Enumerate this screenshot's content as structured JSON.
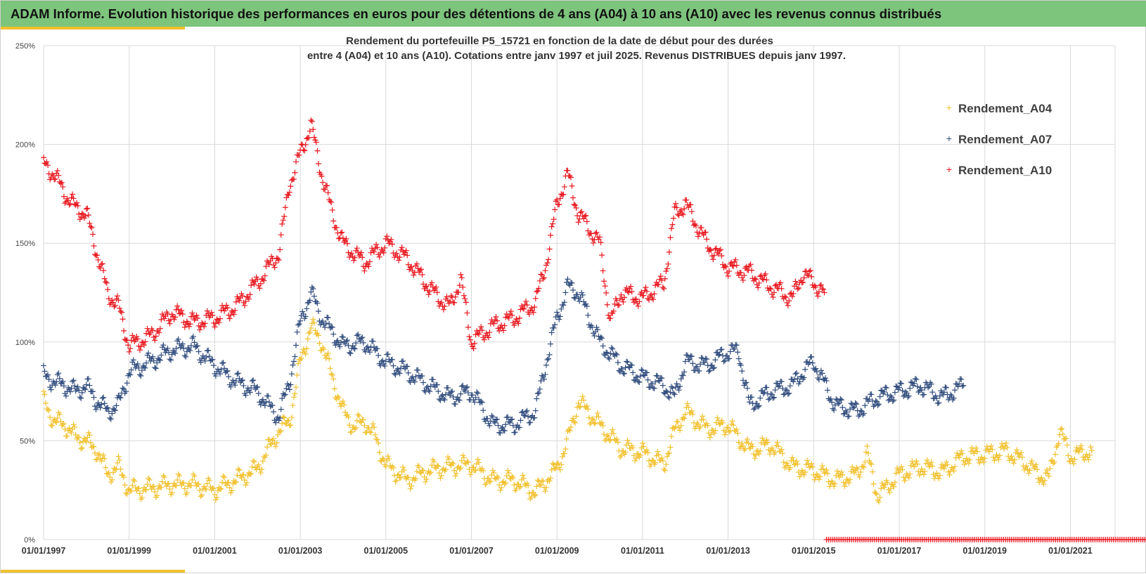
{
  "header": {
    "banner_title": "ADAM Informe. Evolution historique des performances en euros pour des détentions de 4 ans (A04) à 10 ans (A10) avec les revenus connus distribués"
  },
  "colors": {
    "banner": "#7dc47d",
    "accent_bar": "#f2c12e",
    "grid": "#d9d9d9",
    "A04": "#f2c12e",
    "A07": "#2f4b7c",
    "A10": "#e8171f"
  },
  "chart_data": {
    "type": "scatter",
    "title_line1": "Rendement du portefeuille P5_15721 en fonction de la date de début pour des durées",
    "title_line2": "entre 4 (A04) et 10 ans (A10). Cotations  entre janv 1997 et juil 2025. Revenus DISTRIBUES depuis janv 1997.",
    "x_ticks": [
      "01/01/1997",
      "01/01/1999",
      "01/01/2001",
      "01/01/2003",
      "01/01/2005",
      "01/01/2007",
      "01/01/2009",
      "01/01/2011",
      "01/01/2013",
      "01/01/2015",
      "01/01/2017",
      "01/01/2019",
      "01/01/2021"
    ],
    "x_range": [
      1997.0,
      2022.0
    ],
    "y_ticks": [
      "0%",
      "50%",
      "100%",
      "150%",
      "200%",
      "250%"
    ],
    "y_range": [
      0,
      250
    ],
    "grid": true,
    "marker": "+",
    "legend_position": "top-right",
    "series": [
      {
        "name": "Rendement_A04",
        "color": "#f2c12e",
        "x": [
          1997.0,
          1997.25,
          1997.5,
          1997.75,
          1998.0,
          1998.25,
          1998.5,
          1998.75,
          1999.0,
          1999.5,
          2000.0,
          2000.5,
          2001.0,
          2001.5,
          2002.0,
          2002.5,
          2002.75,
          2003.0,
          2003.25,
          2003.5,
          2003.75,
          2004.0,
          2004.25,
          2004.5,
          2004.75,
          2005.0,
          2005.5,
          2006.0,
          2006.5,
          2007.0,
          2007.5,
          2008.0,
          2008.5,
          2009.0,
          2009.25,
          2009.5,
          2010.0,
          2010.5,
          2011.0,
          2011.5,
          2011.75,
          2012.0,
          2012.5,
          2013.0,
          2013.5,
          2014.0,
          2014.5,
          2015.0,
          2015.5,
          2016.0,
          2016.25,
          2016.5,
          2017.0,
          2017.5,
          2018.0,
          2018.5,
          2019.0,
          2019.5,
          2020.0,
          2020.25,
          2020.5,
          2020.75,
          2021.0,
          2021.5
        ],
        "y": [
          70,
          60,
          58,
          52,
          50,
          45,
          33,
          37,
          25,
          26,
          28,
          28,
          25,
          30,
          36,
          55,
          60,
          90,
          108,
          100,
          82,
          65,
          57,
          60,
          52,
          38,
          30,
          35,
          37,
          38,
          30,
          30,
          24,
          36,
          50,
          70,
          58,
          46,
          44,
          38,
          55,
          65,
          56,
          58,
          45,
          48,
          37,
          35,
          30,
          33,
          43,
          22,
          33,
          37,
          34,
          42,
          43,
          45,
          38,
          33,
          31,
          55,
          42,
          45
        ]
      },
      {
        "name": "Rendement_A07",
        "color": "#2f4b7c",
        "x": [
          1997.0,
          1997.25,
          1997.5,
          1997.75,
          1998.0,
          1998.25,
          1998.5,
          1998.75,
          1999.0,
          1999.5,
          2000.0,
          2000.5,
          2001.0,
          2001.5,
          2002.0,
          2002.25,
          2002.5,
          2002.75,
          2003.0,
          2003.25,
          2003.5,
          2003.75,
          2004.0,
          2004.5,
          2005.0,
          2005.5,
          2006.0,
          2006.5,
          2007.0,
          2007.5,
          2008.0,
          2008.5,
          2008.75,
          2009.0,
          2009.25,
          2009.5,
          2010.0,
          2010.5,
          2011.0,
          2011.5,
          2011.75,
          2012.0,
          2012.5,
          2013.0,
          2013.25,
          2013.5,
          2014.0,
          2014.5,
          2014.75,
          2015.0,
          2015.5,
          2016.0,
          2016.5,
          2017.0,
          2017.5,
          2018.0,
          2018.5
        ],
        "y": [
          83,
          80,
          78,
          75,
          78,
          70,
          65,
          68,
          85,
          90,
          96,
          98,
          88,
          80,
          75,
          68,
          62,
          80,
          110,
          125,
          112,
          105,
          98,
          100,
          90,
          85,
          78,
          72,
          75,
          58,
          58,
          65,
          90,
          112,
          128,
          125,
          100,
          88,
          82,
          78,
          72,
          90,
          88,
          95,
          95,
          68,
          75,
          78,
          85,
          90,
          68,
          65,
          72,
          75,
          78,
          72,
          78
        ]
      },
      {
        "name": "Rendement_A10",
        "color": "#e8171f",
        "x": [
          1997.0,
          1997.25,
          1997.5,
          1997.75,
          1998.0,
          1998.25,
          1998.5,
          1998.75,
          1999.0,
          1999.5,
          2000.0,
          2000.5,
          2001.0,
          2001.5,
          2002.0,
          2002.5,
          2002.75,
          2003.0,
          2003.25,
          2003.5,
          2003.75,
          2004.0,
          2004.5,
          2005.0,
          2005.5,
          2006.0,
          2006.25,
          2006.5,
          2006.75,
          2007.0,
          2007.5,
          2008.0,
          2008.5,
          2008.75,
          2009.0,
          2009.25,
          2009.5,
          2010.0,
          2010.25,
          2010.5,
          2011.0,
          2011.5,
          2011.75,
          2012.0,
          2012.5,
          2013.0,
          2013.5,
          2014.0,
          2014.5,
          2014.75,
          2015.0,
          2015.25
        ],
        "y": [
          190,
          185,
          175,
          168,
          165,
          145,
          125,
          118,
          98,
          103,
          115,
          110,
          112,
          118,
          130,
          145,
          180,
          195,
          210,
          185,
          165,
          150,
          140,
          150,
          142,
          128,
          122,
          118,
          132,
          100,
          108,
          112,
          120,
          140,
          170,
          185,
          165,
          150,
          110,
          125,
          122,
          130,
          165,
          170,
          150,
          138,
          135,
          128,
          122,
          135,
          130,
          125
        ]
      }
    ]
  },
  "legend": {
    "symbol": "+"
  }
}
